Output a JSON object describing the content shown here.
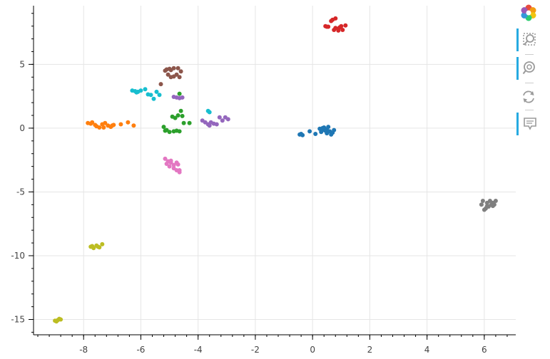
{
  "chart_data": {
    "type": "scatter",
    "title": "",
    "xlabel": "",
    "ylabel": "",
    "xlim": [
      -9.75,
      7.1
    ],
    "ylim": [
      -16.2,
      9.6
    ],
    "x_ticks": [
      -8,
      -6,
      -4,
      -2,
      0,
      2,
      4,
      6
    ],
    "y_ticks": [
      -15,
      -10,
      -5,
      0,
      5
    ],
    "x_minor_step": 0.4,
    "y_minor_step": 1,
    "grid": true,
    "legend": "none",
    "series": [
      {
        "color": "#1f77b4",
        "points": [
          [
            -0.45,
            -0.5
          ],
          [
            -0.35,
            -0.55
          ],
          [
            -0.4,
            -0.45
          ],
          [
            -0.1,
            -0.25
          ],
          [
            0.1,
            -0.45
          ],
          [
            0.25,
            -0.05
          ],
          [
            0.3,
            -0.3
          ],
          [
            0.35,
            -0.15
          ],
          [
            0.45,
            -0.2
          ],
          [
            0.5,
            -0.4
          ],
          [
            0.4,
            0.05
          ],
          [
            0.55,
            0.1
          ],
          [
            0.6,
            -0.25
          ],
          [
            0.65,
            -0.5
          ],
          [
            0.7,
            -0.35
          ],
          [
            0.75,
            -0.15
          ],
          [
            0.5,
            -0.1
          ],
          [
            0.35,
            0.0
          ]
        ]
      },
      {
        "color": "#ff7f0e",
        "points": [
          [
            -7.85,
            0.4
          ],
          [
            -7.75,
            0.35
          ],
          [
            -7.7,
            0.45
          ],
          [
            -7.55,
            0.15
          ],
          [
            -7.45,
            0.05
          ],
          [
            -7.35,
            0.3
          ],
          [
            -7.25,
            0.4
          ],
          [
            -7.15,
            0.2
          ],
          [
            -7.05,
            0.1
          ],
          [
            -6.95,
            0.25
          ],
          [
            -6.7,
            0.3
          ],
          [
            -6.45,
            0.45
          ],
          [
            -6.25,
            0.2
          ],
          [
            -7.6,
            0.25
          ],
          [
            -7.3,
            0.05
          ],
          [
            -7.0,
            0.2
          ]
        ]
      },
      {
        "color": "#2ca02c",
        "points": [
          [
            -5.2,
            0.1
          ],
          [
            -5.15,
            -0.2
          ],
          [
            -5.0,
            -0.3
          ],
          [
            -4.85,
            -0.25
          ],
          [
            -4.75,
            -0.2
          ],
          [
            -4.65,
            -0.25
          ],
          [
            -4.8,
            0.8
          ],
          [
            -4.7,
            1.0
          ],
          [
            -4.55,
            0.95
          ],
          [
            -4.6,
            1.35
          ],
          [
            -4.5,
            0.4
          ],
          [
            -4.3,
            0.4
          ],
          [
            -4.65,
            2.7
          ],
          [
            -4.9,
            0.9
          ],
          [
            -5.1,
            -0.15
          ]
        ]
      },
      {
        "color": "#d62728",
        "points": [
          [
            0.45,
            8.0
          ],
          [
            0.55,
            7.95
          ],
          [
            0.7,
            8.5
          ],
          [
            0.8,
            8.6
          ],
          [
            0.75,
            7.7
          ],
          [
            0.9,
            7.8
          ],
          [
            1.05,
            7.7
          ],
          [
            1.15,
            8.05
          ],
          [
            0.95,
            7.9
          ],
          [
            0.8,
            7.85
          ],
          [
            0.65,
            8.4
          ],
          [
            0.9,
            7.65
          ],
          [
            1.0,
            8.0
          ],
          [
            0.5,
            7.95
          ]
        ]
      },
      {
        "color": "#9467bd",
        "points": [
          [
            -4.85,
            2.45
          ],
          [
            -4.75,
            2.4
          ],
          [
            -4.65,
            2.35
          ],
          [
            -4.55,
            2.4
          ],
          [
            -3.85,
            0.6
          ],
          [
            -3.75,
            0.45
          ],
          [
            -3.65,
            0.3
          ],
          [
            -3.55,
            0.45
          ],
          [
            -3.45,
            0.35
          ],
          [
            -3.35,
            0.3
          ],
          [
            -3.25,
            0.85
          ],
          [
            -3.15,
            0.6
          ],
          [
            -3.05,
            0.85
          ],
          [
            -2.95,
            0.7
          ],
          [
            -3.6,
            0.2
          ]
        ]
      },
      {
        "color": "#8c564b",
        "points": [
          [
            -5.3,
            3.45
          ],
          [
            -5.15,
            4.5
          ],
          [
            -5.05,
            4.2
          ],
          [
            -4.95,
            4.0
          ],
          [
            -4.85,
            4.7
          ],
          [
            -4.75,
            4.2
          ],
          [
            -4.65,
            4.0
          ],
          [
            -4.6,
            4.45
          ],
          [
            -4.95,
            4.55
          ],
          [
            -5.1,
            4.6
          ],
          [
            -4.7,
            4.7
          ],
          [
            -4.85,
            4.05
          ],
          [
            -5.0,
            4.65
          ]
        ]
      },
      {
        "color": "#e377c2",
        "points": [
          [
            -5.15,
            -2.4
          ],
          [
            -5.05,
            -2.6
          ],
          [
            -4.95,
            -2.7
          ],
          [
            -4.85,
            -2.9
          ],
          [
            -4.75,
            -3.3
          ],
          [
            -4.65,
            -3.45
          ],
          [
            -4.75,
            -2.7
          ],
          [
            -4.7,
            -2.85
          ],
          [
            -5.0,
            -3.0
          ],
          [
            -4.85,
            -3.15
          ],
          [
            -4.95,
            -2.55
          ],
          [
            -5.1,
            -2.8
          ],
          [
            -4.65,
            -3.3
          ]
        ]
      },
      {
        "color": "#7f7f7f",
        "points": [
          [
            5.9,
            -6.0
          ],
          [
            5.95,
            -5.7
          ],
          [
            6.05,
            -6.3
          ],
          [
            6.1,
            -5.85
          ],
          [
            6.15,
            -6.15
          ],
          [
            6.2,
            -5.7
          ],
          [
            6.25,
            -6.0
          ],
          [
            6.3,
            -5.85
          ],
          [
            6.35,
            -6.0
          ],
          [
            6.4,
            -5.7
          ],
          [
            6.0,
            -6.4
          ],
          [
            6.1,
            -6.1
          ],
          [
            6.3,
            -6.1
          ]
        ]
      },
      {
        "color": "#bcbd22",
        "points": [
          [
            -7.75,
            -9.3
          ],
          [
            -7.65,
            -9.4
          ],
          [
            -7.55,
            -9.2
          ],
          [
            -7.45,
            -9.35
          ],
          [
            -7.35,
            -9.1
          ],
          [
            -7.7,
            -9.25
          ],
          [
            -7.5,
            -9.3
          ],
          [
            -9.0,
            -15.1
          ],
          [
            -8.9,
            -15.05
          ],
          [
            -8.8,
            -15.0
          ],
          [
            -8.95,
            -15.15
          ],
          [
            -8.85,
            -14.95
          ]
        ]
      },
      {
        "color": "#17becf",
        "points": [
          [
            -6.3,
            2.95
          ],
          [
            -6.2,
            2.9
          ],
          [
            -6.1,
            2.85
          ],
          [
            -6.0,
            2.95
          ],
          [
            -5.85,
            3.05
          ],
          [
            -5.75,
            2.65
          ],
          [
            -5.65,
            2.6
          ],
          [
            -5.55,
            2.3
          ],
          [
            -5.45,
            2.85
          ],
          [
            -5.35,
            2.6
          ],
          [
            -3.65,
            1.35
          ],
          [
            -3.6,
            1.25
          ],
          [
            -6.15,
            2.8
          ]
        ]
      }
    ]
  },
  "toolbar": {
    "logo_icon": "bokeh-logo-icon",
    "tools": [
      {
        "name": "box-zoom-tool",
        "icon": "box-zoom-icon",
        "active": true
      },
      {
        "name": "wheel-zoom-tool",
        "icon": "wheel-zoom-icon",
        "active": true
      },
      {
        "name": "reset-tool",
        "icon": "reset-icon",
        "active": false
      },
      {
        "name": "hover-tool",
        "icon": "hover-icon",
        "active": true
      }
    ]
  }
}
